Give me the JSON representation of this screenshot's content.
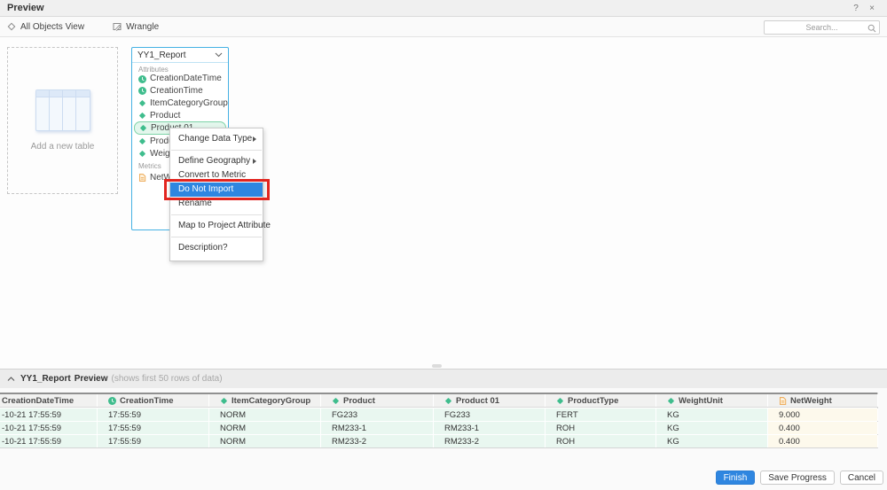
{
  "window": {
    "title": "Preview",
    "help_label": "?",
    "close_label": "×"
  },
  "toolbar": {
    "all_objects_view_label": "All Objects View",
    "wrangle_label": "Wrangle",
    "search_placeholder": "Search..."
  },
  "canvas": {
    "add_table": {
      "label": "Add a new table"
    },
    "card": {
      "title": "YY1_Report",
      "attributes_label": "Attributes",
      "metrics_label": "Metrics",
      "attributes": [
        {
          "label": "CreationDateTime",
          "icon": "clock"
        },
        {
          "label": "CreationTime",
          "icon": "clock"
        },
        {
          "label": "ItemCategoryGroup",
          "icon": "diamond"
        },
        {
          "label": "Product",
          "icon": "diamond"
        },
        {
          "label": "Product 01",
          "icon": "diamond",
          "selected": true
        },
        {
          "label": "ProductType",
          "icon": "diamond"
        },
        {
          "label": "WeightUnit",
          "icon": "diamond"
        }
      ],
      "metrics": [
        {
          "label": "NetWeight",
          "icon": "metric"
        }
      ]
    },
    "context_menu": {
      "items": [
        {
          "label": "Change Data Type",
          "submenu": true,
          "separator_after": true
        },
        {
          "label": "Define Geography",
          "submenu": true
        },
        {
          "label": "Convert to Metric"
        },
        {
          "label": "Do Not Import",
          "highlighted": true,
          "annotated": true
        },
        {
          "label": "Rename",
          "separator_after": true
        },
        {
          "label": "Map to Project Attribute",
          "separator_after": true
        },
        {
          "label": "Description?"
        }
      ]
    }
  },
  "preview": {
    "title": "YY1_Report",
    "subtitle": "Preview",
    "note": "(shows first 50 rows of data)",
    "table": {
      "columns": [
        {
          "label": "CreationDateTime",
          "icon": "none",
          "type": "attribute"
        },
        {
          "label": "CreationTime",
          "icon": "clock",
          "type": "attribute"
        },
        {
          "label": "ItemCategoryGroup",
          "icon": "diamond",
          "type": "attribute"
        },
        {
          "label": "Product",
          "icon": "diamond",
          "type": "attribute"
        },
        {
          "label": "Product 01",
          "icon": "diamond",
          "type": "attribute"
        },
        {
          "label": "ProductType",
          "icon": "diamond",
          "type": "attribute"
        },
        {
          "label": "WeightUnit",
          "icon": "diamond",
          "type": "attribute"
        },
        {
          "label": "NetWeight",
          "icon": "metric",
          "type": "metric"
        }
      ],
      "rows": [
        [
          "-10-21 17:55:59",
          "17:55:59",
          "NORM",
          "FG233",
          "FG233",
          "FERT",
          "KG",
          "9.000"
        ],
        [
          "-10-21 17:55:59",
          "17:55:59",
          "NORM",
          "RM233-1",
          "RM233-1",
          "ROH",
          "KG",
          "0.400"
        ],
        [
          "-10-21 17:55:59",
          "17:55:59",
          "NORM",
          "RM233-2",
          "RM233-2",
          "ROH",
          "KG",
          "0.400"
        ]
      ]
    }
  },
  "footer": {
    "finish_label": "Finish",
    "save_progress_label": "Save Progress",
    "cancel_label": "Cancel"
  },
  "colors": {
    "attribute_green": "#3fbd8d",
    "metric_orange": "#eda54d",
    "metric_fill": "#fdf3e0",
    "card_border_blue": "#45b1e4",
    "menu_highlight_blue": "#2f86e0",
    "annotation_red": "#e2251f",
    "finish_button_blue": "#2f86e0",
    "attribute_cell_mint": "#e9f7f0",
    "metric_cell_cream": "#fdf9ec"
  }
}
